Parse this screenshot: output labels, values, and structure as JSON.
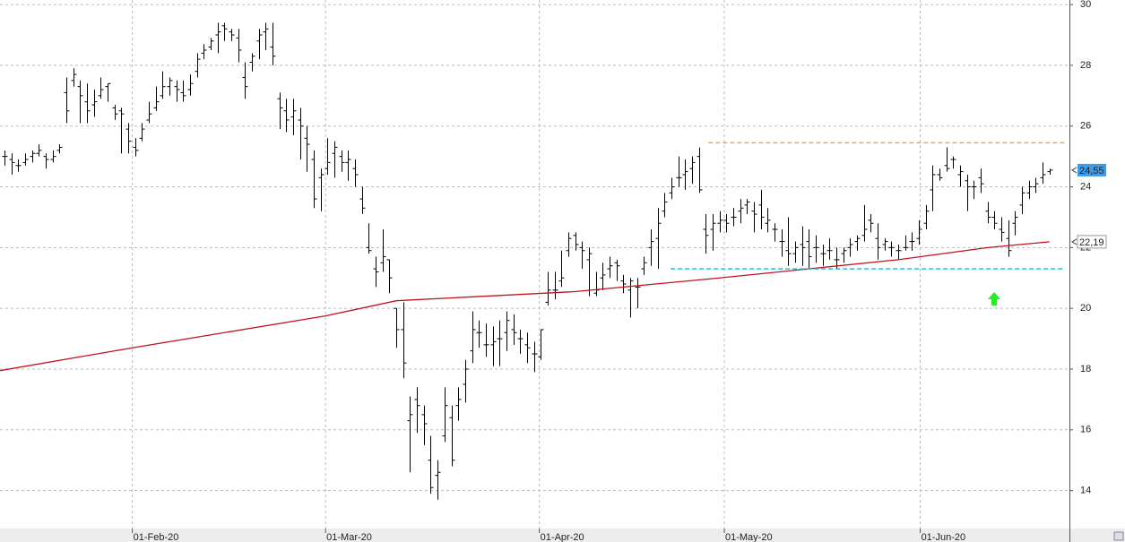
{
  "chart_data": {
    "type": "ohlc",
    "ylim": [
      12.75,
      30.15
    ],
    "yticks": [
      14,
      16,
      18,
      20,
      22,
      24,
      26,
      28,
      30
    ],
    "xlim": [
      -0.65,
      154.9
    ],
    "xticks": [
      {
        "value": 18.6,
        "label": "01-Feb-20"
      },
      {
        "value": 46.7,
        "label": "01-Mar-20"
      },
      {
        "value": 77.8,
        "label": "01-Apr-20"
      },
      {
        "value": 104.7,
        "label": "01-May-20"
      },
      {
        "value": 133.2,
        "label": "01-Jun-20"
      }
    ],
    "grid": true,
    "bar_color": "#000000",
    "ohlc": [
      [
        25.0,
        25.2,
        24.7,
        25.0
      ],
      [
        24.9,
        25.1,
        24.4,
        24.8
      ],
      [
        24.7,
        24.9,
        24.5,
        24.7
      ],
      [
        24.8,
        25.1,
        24.7,
        24.9
      ],
      [
        25.0,
        25.2,
        24.8,
        25.1
      ],
      [
        25.1,
        25.4,
        25.0,
        25.2
      ],
      [
        25.0,
        25.1,
        24.6,
        24.9
      ],
      [
        24.9,
        25.2,
        24.8,
        25.0
      ],
      [
        25.2,
        25.4,
        25.1,
        25.3
      ],
      [
        27.1,
        27.6,
        26.1,
        26.5
      ],
      [
        27.5,
        27.9,
        27.3,
        27.7
      ],
      [
        27.3,
        27.5,
        26.1,
        27.0
      ],
      [
        26.8,
        27.4,
        26.1,
        26.5
      ],
      [
        26.7,
        27.2,
        26.3,
        26.8
      ],
      [
        27.0,
        27.6,
        26.9,
        27.2
      ],
      [
        27.3,
        27.4,
        26.8,
        27.4
      ],
      [
        26.6,
        26.7,
        26.2,
        26.4
      ],
      [
        26.5,
        26.6,
        25.1,
        26.4
      ],
      [
        25.9,
        26.1,
        25.1,
        25.5
      ],
      [
        25.3,
        25.6,
        25.0,
        25.2
      ],
      [
        25.6,
        26.1,
        25.5,
        25.9
      ],
      [
        26.2,
        26.8,
        26.1,
        26.4
      ],
      [
        26.6,
        27.3,
        26.5,
        26.8
      ],
      [
        27.0,
        27.8,
        26.9,
        27.3
      ],
      [
        27.3,
        27.6,
        27.0,
        27.5
      ],
      [
        27.3,
        27.5,
        26.8,
        27.2
      ],
      [
        27.1,
        27.5,
        26.8,
        27.0
      ],
      [
        27.2,
        27.7,
        27.0,
        27.4
      ],
      [
        27.8,
        28.4,
        27.6,
        28.2
      ],
      [
        28.4,
        28.7,
        28.2,
        28.5
      ],
      [
        28.6,
        28.9,
        28.5,
        28.8
      ],
      [
        29.0,
        29.4,
        28.4,
        29.1
      ],
      [
        29.3,
        29.4,
        28.8,
        29.2
      ],
      [
        29.1,
        29.2,
        28.8,
        29.0
      ],
      [
        28.9,
        29.2,
        28.1,
        28.5
      ],
      [
        27.6,
        28.1,
        26.9,
        27.3
      ],
      [
        28.1,
        28.4,
        27.8,
        28.3
      ],
      [
        28.8,
        29.2,
        28.2,
        29.0
      ],
      [
        29.1,
        29.4,
        28.5,
        29.2
      ],
      [
        28.6,
        29.4,
        28.0,
        28.3
      ],
      [
        26.9,
        27.1,
        25.9,
        26.6
      ],
      [
        26.5,
        26.9,
        25.8,
        26.2
      ],
      [
        26.3,
        26.9,
        25.7,
        26.5
      ],
      [
        26.2,
        26.6,
        24.9,
        26.0
      ],
      [
        25.6,
        26.0,
        24.5,
        25.4
      ],
      [
        24.9,
        25.2,
        23.3,
        23.6
      ],
      [
        24.3,
        24.6,
        23.2,
        24.4
      ],
      [
        24.6,
        25.6,
        24.4,
        24.8
      ],
      [
        25.1,
        25.5,
        24.3,
        25.3
      ],
      [
        25.0,
        25.2,
        24.5,
        24.8
      ],
      [
        24.8,
        25.2,
        24.2,
        24.9
      ],
      [
        24.6,
        24.9,
        24.0,
        24.4
      ],
      [
        23.6,
        24.0,
        23.1,
        23.3
      ],
      [
        22.0,
        22.8,
        21.8,
        21.9
      ],
      [
        21.3,
        21.7,
        20.7,
        21.2
      ],
      [
        21.5,
        22.6,
        21.2,
        21.7
      ],
      [
        21.6,
        21.6,
        20.5,
        21.0
      ],
      [
        20.0,
        20.0,
        18.7,
        19.3
      ],
      [
        19.3,
        20.2,
        17.7,
        18.2
      ],
      [
        16.3,
        17.1,
        14.6,
        16.5
      ],
      [
        17.0,
        17.4,
        15.9,
        16.8
      ],
      [
        16.5,
        16.8,
        15.5,
        16.2
      ],
      [
        15.0,
        15.8,
        13.9,
        14.1
      ],
      [
        14.5,
        15.0,
        13.7,
        14.6
      ],
      [
        15.8,
        17.4,
        15.6,
        16.8
      ],
      [
        16.4,
        16.8,
        14.8,
        15.0
      ],
      [
        16.8,
        17.4,
        16.3,
        17.0
      ],
      [
        17.5,
        18.3,
        16.9,
        18.0
      ],
      [
        18.6,
        19.9,
        18.2,
        19.3
      ],
      [
        19.2,
        19.6,
        18.7,
        19.2
      ],
      [
        18.8,
        19.5,
        18.4,
        18.8
      ],
      [
        18.8,
        19.4,
        18.1,
        18.9
      ],
      [
        19.0,
        19.6,
        18.1,
        19.0
      ],
      [
        19.2,
        19.9,
        18.6,
        19.6
      ],
      [
        19.3,
        19.8,
        18.8,
        19.2
      ],
      [
        19.0,
        19.3,
        18.5,
        19.0
      ],
      [
        18.8,
        19.2,
        18.2,
        18.7
      ],
      [
        18.5,
        18.9,
        17.9,
        18.5
      ],
      [
        18.4,
        19.3,
        18.3,
        19.3
      ],
      [
        20.2,
        21.2,
        20.1,
        20.6
      ],
      [
        20.6,
        21.2,
        20.3,
        20.6
      ],
      [
        20.9,
        21.9,
        20.7,
        21.0
      ],
      [
        21.9,
        22.5,
        21.7,
        22.3
      ],
      [
        22.4,
        22.5,
        21.9,
        22.1
      ],
      [
        22.0,
        22.2,
        21.3,
        21.9
      ],
      [
        21.6,
        22.0,
        20.4,
        21.8
      ],
      [
        20.5,
        21.2,
        20.4,
        20.6
      ],
      [
        21.0,
        21.5,
        20.6,
        21.1
      ],
      [
        21.3,
        21.7,
        21.0,
        21.4
      ],
      [
        21.5,
        21.6,
        20.9,
        21.4
      ],
      [
        20.9,
        21.1,
        20.5,
        20.8
      ],
      [
        20.6,
        21.0,
        19.7,
        20.9
      ],
      [
        20.7,
        21.0,
        20.0,
        20.7
      ],
      [
        21.3,
        21.7,
        21.1,
        21.5
      ],
      [
        22.0,
        22.6,
        21.4,
        22.2
      ],
      [
        22.3,
        23.3,
        21.3,
        22.8
      ],
      [
        23.2,
        23.8,
        23.0,
        23.5
      ],
      [
        23.8,
        24.3,
        23.6,
        24.0
      ],
      [
        24.3,
        25.0,
        24.0,
        24.3
      ],
      [
        24.4,
        24.9,
        23.9,
        24.5
      ],
      [
        24.6,
        25.0,
        24.1,
        24.8
      ],
      [
        25.0,
        25.3,
        23.8,
        23.9
      ],
      [
        22.6,
        23.1,
        21.8,
        22.4
      ],
      [
        22.6,
        23.1,
        21.9,
        22.8
      ],
      [
        22.8,
        23.2,
        22.5,
        22.9
      ],
      [
        22.9,
        23.1,
        22.5,
        22.8
      ],
      [
        23.0,
        23.3,
        22.7,
        23.0
      ],
      [
        23.2,
        23.6,
        22.8,
        23.3
      ],
      [
        23.4,
        23.6,
        23.1,
        23.5
      ],
      [
        23.2,
        23.5,
        22.5,
        23.1
      ],
      [
        23.4,
        23.9,
        22.6,
        23.0
      ],
      [
        22.8,
        23.3,
        22.5,
        22.9
      ],
      [
        22.6,
        22.8,
        22.2,
        22.6
      ],
      [
        22.2,
        22.6,
        21.7,
        22.2
      ],
      [
        21.9,
        23.0,
        21.4,
        21.8
      ],
      [
        21.8,
        22.2,
        21.5,
        22.0
      ],
      [
        22.1,
        22.7,
        21.4,
        22.0
      ],
      [
        22.2,
        22.6,
        21.3,
        21.7
      ],
      [
        22.0,
        22.4,
        21.5,
        22.0
      ],
      [
        21.8,
        22.1,
        21.4,
        21.8
      ],
      [
        21.9,
        22.3,
        21.6,
        21.9
      ],
      [
        21.6,
        22.0,
        21.3,
        21.6
      ],
      [
        21.8,
        22.0,
        21.5,
        21.9
      ],
      [
        22.0,
        22.3,
        21.7,
        22.1
      ],
      [
        22.2,
        22.4,
        21.9,
        22.3
      ],
      [
        22.4,
        23.4,
        22.2,
        22.6
      ],
      [
        22.9,
        23.1,
        22.5,
        22.8
      ],
      [
        22.3,
        22.8,
        21.6,
        22.0
      ],
      [
        22.1,
        22.3,
        21.9,
        22.2
      ],
      [
        22.0,
        22.2,
        21.7,
        22.0
      ],
      [
        21.9,
        22.1,
        21.6,
        21.9
      ],
      [
        22.0,
        22.4,
        21.9,
        22.0
      ],
      [
        22.2,
        22.5,
        21.9,
        22.2
      ],
      [
        22.3,
        22.9,
        22.1,
        22.6
      ],
      [
        22.8,
        23.4,
        22.6,
        23.2
      ],
      [
        23.9,
        24.7,
        23.2,
        24.4
      ],
      [
        24.4,
        24.6,
        24.2,
        24.3
      ],
      [
        24.7,
        25.3,
        24.5,
        24.6
      ],
      [
        24.9,
        25.0,
        24.6,
        24.9
      ],
      [
        24.4,
        24.7,
        24.0,
        24.5
      ],
      [
        24.2,
        24.4,
        23.2,
        24.0
      ],
      [
        24.0,
        24.2,
        23.6,
        24.0
      ],
      [
        24.3,
        24.6,
        23.8,
        24.1
      ],
      [
        23.2,
        23.5,
        22.8,
        23.0
      ],
      [
        23.0,
        23.2,
        22.6,
        22.8
      ],
      [
        22.6,
        23.0,
        22.2,
        22.5
      ],
      [
        22.3,
        22.9,
        21.7,
        21.9
      ],
      [
        22.8,
        23.2,
        22.4,
        23.0
      ],
      [
        23.4,
        24.0,
        23.1,
        23.8
      ],
      [
        23.8,
        24.2,
        23.6,
        24.0
      ],
      [
        24.0,
        24.3,
        23.8,
        24.1
      ],
      [
        24.3,
        24.8,
        24.1,
        24.4
      ],
      [
        24.5,
        24.6,
        24.4,
        24.55
      ]
    ],
    "moving_average": {
      "color": "#c0141c",
      "x": [
        -0.65,
        18.6,
        46.7,
        57,
        83,
        104,
        130,
        143,
        152
      ],
      "values": [
        17.95,
        18.7,
        19.75,
        20.25,
        20.55,
        21.0,
        21.6,
        22.0,
        22.19
      ]
    },
    "levels": [
      {
        "value": 25.45,
        "x": [
          102.4,
          154.2
        ],
        "color": "#f5a04a"
      },
      {
        "value": 21.3,
        "x": [
          96.9,
          154.2
        ],
        "color": "#29b6d8"
      }
    ],
    "last_price": {
      "value": 24.55,
      "label": "24,55",
      "color": "#3d9be9"
    },
    "ma_price": {
      "value": 22.19,
      "label": "22,19"
    }
  }
}
